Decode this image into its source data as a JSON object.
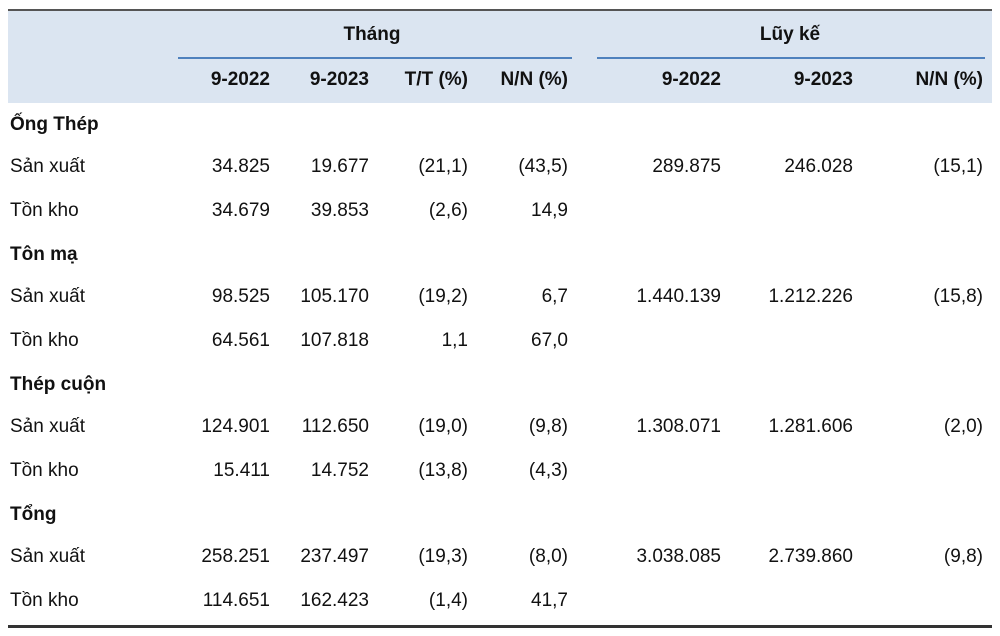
{
  "header": {
    "group_labels": [
      "Tháng",
      "Lũy kế"
    ],
    "columns": [
      "9-2022",
      "9-2023",
      "T/T (%)",
      "N/N (%)",
      "9-2022",
      "9-2023",
      "N/N (%)"
    ]
  },
  "groups": [
    {
      "title": "Ống Thép",
      "rows": [
        {
          "label": "Sản xuất",
          "cells": [
            "34.825",
            "19.677",
            "(21,1)",
            "(43,5)",
            "289.875",
            "246.028",
            "(15,1)"
          ]
        },
        {
          "label": "Tồn kho",
          "cells": [
            "34.679",
            "39.853",
            "(2,6)",
            "14,9"
          ]
        }
      ]
    },
    {
      "title": "Tôn mạ",
      "rows": [
        {
          "label": "Sản xuất",
          "cells": [
            "98.525",
            "105.170",
            "(19,2)",
            "6,7",
            "1.440.139",
            "1.212.226",
            "(15,8)"
          ]
        },
        {
          "label": "Tồn kho",
          "cells": [
            "64.561",
            "107.818",
            "1,1",
            "67,0"
          ]
        }
      ]
    },
    {
      "title": "Thép cuộn",
      "rows": [
        {
          "label": "Sản xuất",
          "cells": [
            "124.901",
            "112.650",
            "(19,0)",
            "(9,8)",
            "1.308.071",
            "1.281.606",
            "(2,0)"
          ]
        },
        {
          "label": "Tồn kho",
          "cells": [
            "15.411",
            "14.752",
            "(13,8)",
            "(4,3)"
          ]
        }
      ]
    },
    {
      "title": "Tổng",
      "rows": [
        {
          "label": "Sản xuất",
          "cells": [
            "258.251",
            "237.497",
            "(19,3)",
            "(8,0)",
            "3.038.085",
            "2.739.860",
            "(9,8)"
          ]
        },
        {
          "label": "Tồn kho",
          "cells": [
            "114.651",
            "162.423",
            "(1,4)",
            "41,7"
          ]
        }
      ]
    }
  ]
}
